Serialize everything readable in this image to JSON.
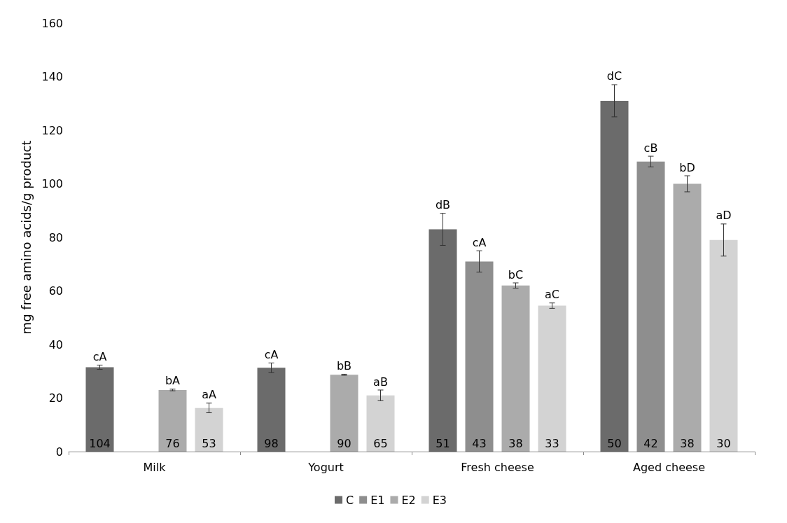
{
  "chart_data": {
    "type": "bar",
    "ylabel": "mg free amino acids/g product",
    "categories": [
      "Milk",
      "Yogurt",
      "Fresh cheese",
      "Aged cheese"
    ],
    "series": [
      {
        "name": "C",
        "color": "#6b6b6b",
        "values": [
          31.5,
          31.3,
          83,
          131
        ],
        "errors": [
          0.8,
          1.8,
          6,
          6
        ],
        "value_labels": [
          "cA",
          "cA",
          "dB",
          "dC"
        ]
      },
      {
        "name": "E1",
        "color": "#8e8e8e",
        "values": [
          null,
          null,
          71,
          108.3
        ],
        "errors": [
          null,
          null,
          4,
          2
        ],
        "value_labels": [
          null,
          null,
          "cA",
          "cB"
        ]
      },
      {
        "name": "E2",
        "color": "#ababab",
        "values": [
          23,
          28.7,
          62,
          100
        ],
        "errors": [
          0.3,
          0.2,
          1,
          3
        ],
        "value_labels": [
          "bA",
          "bB",
          "bC",
          "bD"
        ]
      },
      {
        "name": "E3",
        "color": "#d3d3d3",
        "values": [
          16.3,
          21,
          54.5,
          79
        ],
        "errors": [
          1.8,
          2,
          1,
          6
        ],
        "value_labels": [
          "aA",
          "aB",
          "aC",
          "aD"
        ]
      }
    ],
    "annotations": [
      "104",
      "76",
      "53",
      "98",
      "90",
      "65",
      "51",
      "43",
      "38",
      "33",
      "50",
      "42",
      "38",
      "30"
    ],
    "ylim": [
      0,
      160
    ],
    "yticks": [
      0,
      20,
      40,
      60,
      80,
      100,
      120,
      140,
      160
    ],
    "grid": false,
    "legend": "bottom"
  }
}
